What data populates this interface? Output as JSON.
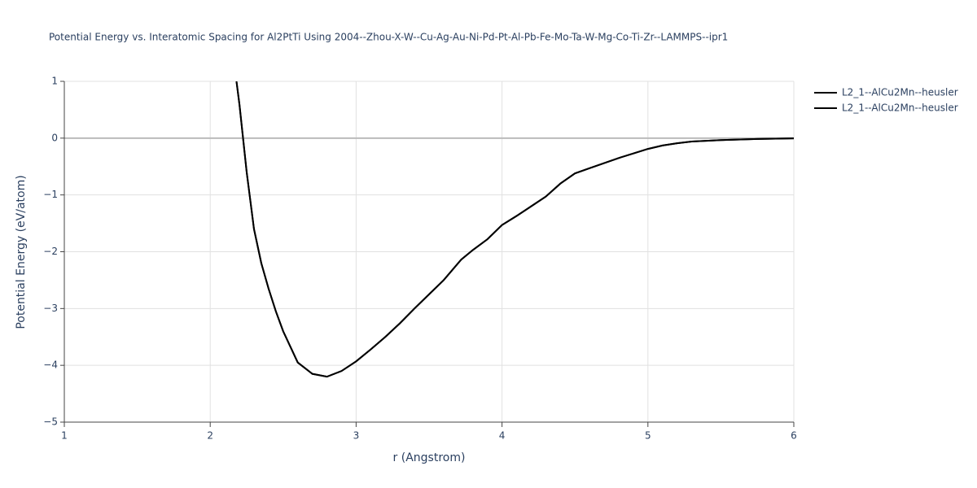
{
  "chart_data": {
    "type": "line",
    "title": "Potential Energy vs. Interatomic Spacing for Al2PtTi Using 2004--Zhou-X-W--Cu-Ag-Au-Ni-Pd-Pt-Al-Pb-Fe-Mo-Ta-W-Mg-Co-Ti-Zr--LAMMPS--ipr1",
    "x_label": "r (Angstrom)",
    "y_label": "Potential Energy (eV/atom)",
    "x": [
      2.18,
      2.2,
      2.25,
      2.3,
      2.35,
      2.4,
      2.45,
      2.5,
      2.6,
      2.7,
      2.8,
      2.9,
      3.0,
      3.1,
      3.2,
      3.3,
      3.4,
      3.5,
      3.6,
      3.72,
      3.8,
      3.9,
      4.0,
      4.1,
      4.2,
      4.3,
      4.4,
      4.5,
      4.6,
      4.7,
      4.8,
      4.9,
      5.0,
      5.1,
      5.2,
      5.3,
      5.5,
      5.75,
      6.0
    ],
    "series": [
      {
        "name": "L2_1--AlCu2Mn--heusler",
        "color": "#000000",
        "values": [
          1.0,
          0.6,
          -0.6,
          -1.6,
          -2.2,
          -2.65,
          -3.05,
          -3.4,
          -3.95,
          -4.15,
          -4.2,
          -4.1,
          -3.93,
          -3.72,
          -3.5,
          -3.26,
          -3.0,
          -2.75,
          -2.5,
          -2.14,
          -1.97,
          -1.78,
          -1.53,
          -1.37,
          -1.2,
          -1.03,
          -0.8,
          -0.62,
          -0.53,
          -0.44,
          -0.35,
          -0.27,
          -0.19,
          -0.13,
          -0.09,
          -0.06,
          -0.035,
          -0.015,
          -0.005
        ]
      },
      {
        "name": "L2_1--AlCu2Mn--heusler",
        "color": "#000000",
        "values": [
          1.0,
          0.6,
          -0.6,
          -1.6,
          -2.2,
          -2.65,
          -3.05,
          -3.4,
          -3.95,
          -4.15,
          -4.2,
          -4.1,
          -3.93,
          -3.72,
          -3.5,
          -3.26,
          -3.0,
          -2.75,
          -2.5,
          -2.14,
          -1.97,
          -1.78,
          -1.53,
          -1.37,
          -1.2,
          -1.03,
          -0.8,
          -0.62,
          -0.53,
          -0.44,
          -0.35,
          -0.27,
          -0.19,
          -0.13,
          -0.09,
          -0.06,
          -0.035,
          -0.015,
          -0.005
        ]
      }
    ],
    "xlim": [
      1,
      6
    ],
    "xticks": [
      1,
      2,
      3,
      4,
      5,
      6
    ],
    "ylim": [
      -5,
      1
    ],
    "yticks": [
      {
        "value": -5,
        "label": "−5"
      },
      {
        "value": -4,
        "label": "−4"
      },
      {
        "value": -3,
        "label": "−3"
      },
      {
        "value": -2,
        "label": "−2"
      },
      {
        "value": -1,
        "label": "−1"
      },
      0,
      1
    ],
    "grid": true,
    "legend": "right"
  }
}
